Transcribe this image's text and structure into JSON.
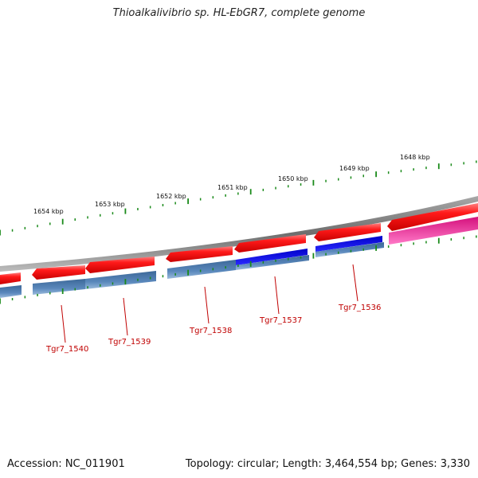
{
  "title": "Thioalkalivibrio sp. HL-EbGR7, complete genome",
  "footer": {
    "accession": "Accession: NC_011901",
    "summary": "Topology: circular; Length: 3,464,554 bp; Genes: 3,330"
  },
  "scale_labels": [
    "1654 kbp",
    "1653 kbp",
    "1652 kbp",
    "1651 kbp",
    "1650 kbp",
    "1649 kbp",
    "1648 kbp"
  ],
  "gene_labels": [
    "Tgr7_1540",
    "Tgr7_1539",
    "Tgr7_1538",
    "Tgr7_1537",
    "Tgr7_1536"
  ],
  "colors": {
    "forward_gene": "#e60000",
    "reverse_gene": "#4a7ab0",
    "highlight_blue": "#1010d8",
    "highlight_pink": "#e8208c",
    "backbone": "#808080",
    "ticks": "#1a8a1a",
    "label": "#c00000"
  }
}
